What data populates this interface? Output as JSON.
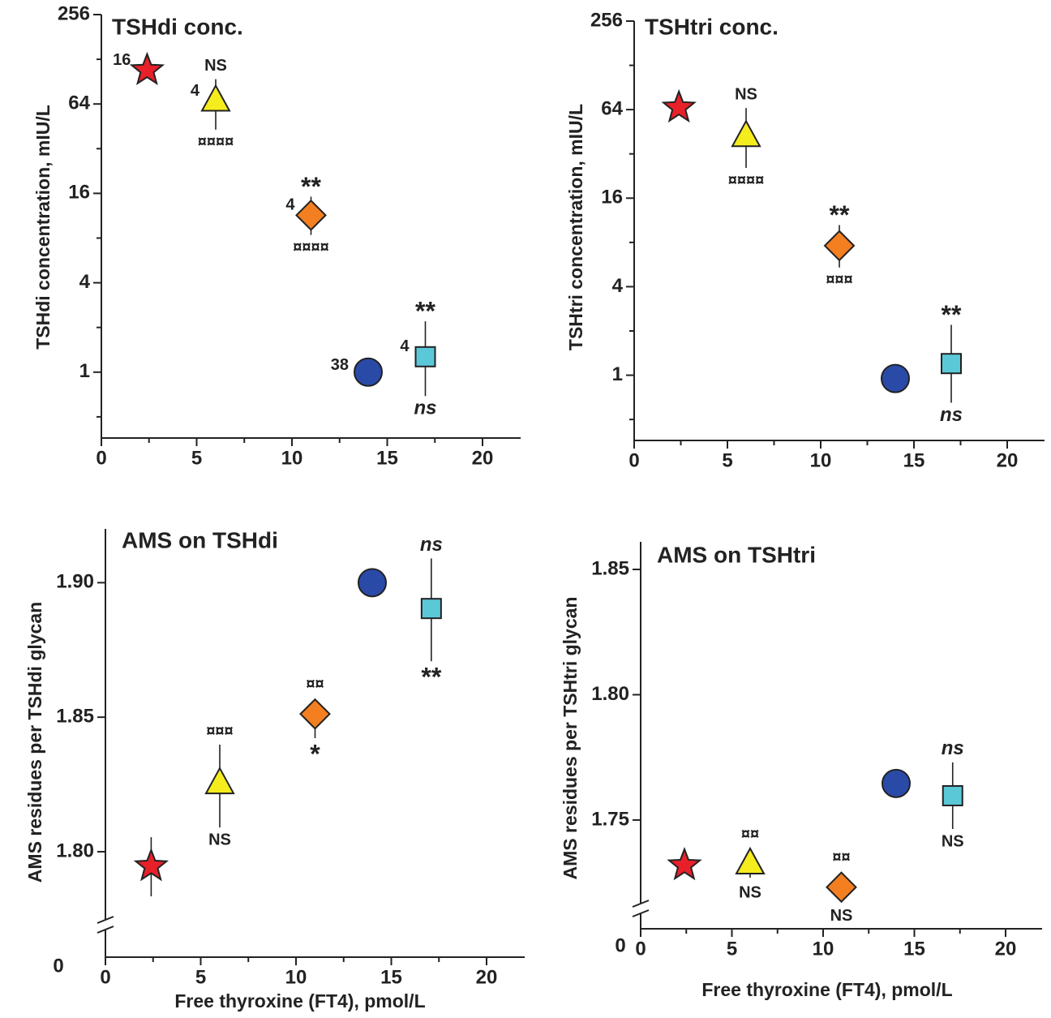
{
  "chart_data": [
    {
      "type": "scatter",
      "title": "TSHdi conc.",
      "ylabel": "TSHdi concentration,  mIU/L",
      "ylog": true,
      "xlim": [
        0,
        22
      ],
      "xticks": [
        0,
        5,
        10,
        15,
        20
      ],
      "xminor": [
        2.5,
        7.5,
        12.5,
        17.5
      ],
      "ylim": [
        0.36,
        256
      ],
      "yticks": [
        1,
        4,
        16,
        64,
        256
      ],
      "yminor": [
        0.5,
        2,
        8,
        32,
        128
      ],
      "points": [
        {
          "marker": "star",
          "color": "#e8202a",
          "x": 2.4,
          "y": 108,
          "y_low": null,
          "y_high": null,
          "labels": {
            "left": "16"
          }
        },
        {
          "marker": "triangle",
          "color": "#f5ec1e",
          "x": 6,
          "y": 67,
          "y_low": 43,
          "y_high": 94,
          "labels": {
            "left": "4",
            "above": "NS",
            "below": "¤¤¤¤"
          }
        },
        {
          "marker": "diamond",
          "color": "#f37f20",
          "x": 11,
          "y": 11.4,
          "y_low": 8.4,
          "y_high": 15.2,
          "labels": {
            "left": "4",
            "above": "**",
            "below": "¤¤¤¤"
          }
        },
        {
          "marker": "circle",
          "color": "#2a4aa8",
          "x": 14,
          "y": 1.0,
          "y_low": null,
          "y_high": null,
          "labels": {
            "left": "38"
          }
        },
        {
          "marker": "square",
          "color": "#5bc8d8",
          "x": 17,
          "y": 1.27,
          "y_low": 0.69,
          "y_high": 2.2,
          "labels": {
            "left": "4",
            "above": "**",
            "below": "ns"
          },
          "italic": "below"
        }
      ]
    },
    {
      "type": "scatter",
      "title": "TSHtri conc.",
      "ylabel": "TSHtri concentration,  mIU/L",
      "ylog": true,
      "xlim": [
        0,
        22
      ],
      "xticks": [
        0,
        5,
        10,
        15,
        20
      ],
      "xminor": [
        2.5,
        7.5,
        12.5,
        17.5
      ],
      "ylim": [
        0.36,
        256
      ],
      "yticks": [
        1,
        4,
        16,
        64,
        256
      ],
      "yminor": [
        0.5,
        2,
        8,
        32,
        128
      ],
      "points": [
        {
          "marker": "star",
          "color": "#e8202a",
          "x": 2.4,
          "y": 66,
          "y_low": null,
          "y_high": null,
          "labels": {}
        },
        {
          "marker": "triangle",
          "color": "#f5ec1e",
          "x": 6,
          "y": 42,
          "y_low": 25.7,
          "y_high": 65.6,
          "labels": {
            "above": "NS",
            "below": "¤¤¤¤"
          }
        },
        {
          "marker": "diamond",
          "color": "#f37f20",
          "x": 11,
          "y": 7.6,
          "y_low": 5.4,
          "y_high": 10.5,
          "labels": {
            "above": "**",
            "below": "¤¤¤"
          }
        },
        {
          "marker": "circle",
          "color": "#2a4aa8",
          "x": 14,
          "y": 0.95,
          "y_low": null,
          "y_high": null,
          "labels": {}
        },
        {
          "marker": "square",
          "color": "#5bc8d8",
          "x": 17,
          "y": 1.2,
          "y_low": 0.65,
          "y_high": 2.2,
          "labels": {
            "above": "**",
            "below": "ns"
          },
          "italic": "below"
        }
      ]
    },
    {
      "type": "scatter",
      "title": "AMS on TSHdi",
      "ylabel": "AMS residues per TSHdi glycan",
      "xlabel": "Free thyroxine (FT4), pmol/L",
      "ylog": false,
      "xlim": [
        0,
        22
      ],
      "xticks": [
        0,
        5,
        10,
        15,
        20
      ],
      "xminor": [
        2.5,
        7.5,
        12.5,
        17.5
      ],
      "ylim": [
        1.7608,
        1.92
      ],
      "yticks": [
        {
          "value": 1.8,
          "label": "1.80"
        },
        1.85,
        {
          "value": 1.9,
          "label": "1.90"
        }
      ],
      "ybreak_label": "0",
      "points": [
        {
          "marker": "star",
          "color": "#e8202a",
          "x": 2.4,
          "y": 1.7946,
          "y_low": 1.7834,
          "y_high": 1.8054,
          "labels": {}
        },
        {
          "marker": "triangle",
          "color": "#f5ec1e",
          "x": 6,
          "y": 1.8253,
          "y_low": 1.809,
          "y_high": 1.8398,
          "labels": {
            "above": "¤¤¤",
            "below": "NS"
          }
        },
        {
          "marker": "diamond",
          "color": "#f37f20",
          "x": 11,
          "y": 1.8512,
          "y_low": 1.8422,
          "y_high": 1.8566,
          "labels": {
            "above": "¤¤",
            "below": "*"
          }
        },
        {
          "marker": "circle",
          "color": "#2a4aa8",
          "x": 14,
          "y": 1.9,
          "y_low": null,
          "y_high": null,
          "labels": {}
        },
        {
          "marker": "square",
          "color": "#5bc8d8",
          "x": 17.1,
          "y": 1.8904,
          "y_low": 1.8708,
          "y_high": 1.909,
          "labels": {
            "above": "ns",
            "below": "**"
          },
          "italic": "above"
        }
      ]
    },
    {
      "type": "scatter",
      "title": "AMS on TSHtri",
      "ylabel": "AMS residues per TSHtri glycan",
      "xlabel": "Free thyroxine (FT4), pmol/L",
      "ylog": false,
      "xlim": [
        0,
        22
      ],
      "xticks": [
        0,
        5,
        10,
        15,
        20
      ],
      "xminor": [
        2.5,
        7.5,
        12.5,
        17.5
      ],
      "ylim": [
        1.7066,
        1.861
      ],
      "yticks": [
        1.75,
        {
          "value": 1.8,
          "label": "1.80"
        },
        1.85
      ],
      "ybreak_label": "0",
      "points": [
        {
          "marker": "star",
          "color": "#e8202a",
          "x": 2.4,
          "y": 1.7319,
          "y_low": null,
          "y_high": null,
          "labels": {}
        },
        {
          "marker": "triangle",
          "color": "#f5ec1e",
          "x": 6,
          "y": 1.7325,
          "y_low": 1.727,
          "y_high": 1.737,
          "labels": {
            "above": "¤¤",
            "below": "NS"
          }
        },
        {
          "marker": "diamond",
          "color": "#f37f20",
          "x": 11,
          "y": 1.7232,
          "y_low": 1.718,
          "y_high": 1.7293,
          "labels": {
            "above": "¤¤",
            "below": "NS"
          }
        },
        {
          "marker": "circle",
          "color": "#2a4aa8",
          "x": 14,
          "y": 1.7646,
          "y_low": null,
          "y_high": null,
          "labels": {}
        },
        {
          "marker": "square",
          "color": "#5bc8d8",
          "x": 17.1,
          "y": 1.7597,
          "y_low": 1.7464,
          "y_high": 1.773,
          "labels": {
            "above": "ns",
            "below": "NS"
          },
          "italic": "above"
        }
      ]
    }
  ]
}
